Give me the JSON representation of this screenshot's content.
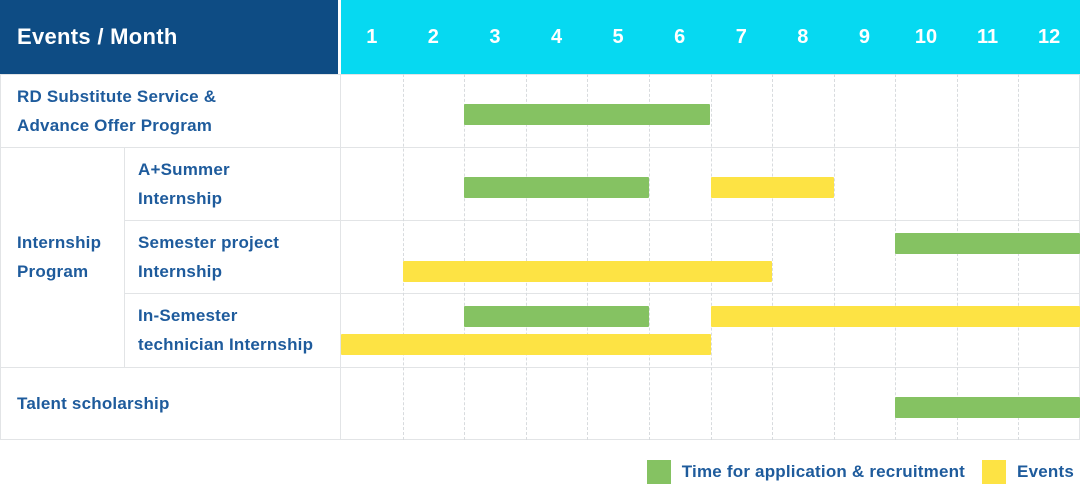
{
  "header": {
    "title": "Events / Month"
  },
  "months": [
    "1",
    "2",
    "3",
    "4",
    "5",
    "6",
    "7",
    "8",
    "9",
    "10",
    "11",
    "12"
  ],
  "colors": {
    "navy": "#0e4c84",
    "cyan": "#06d9f1",
    "application": "#85c262",
    "events": "#fde344",
    "label_blue": "#1e5b9c",
    "grid_line": "#e2e4e6",
    "grid_dash": "#d8dbde"
  },
  "group_label_lines": [
    "Internship",
    "Program"
  ],
  "rows": [
    {
      "name": "rd-substitute-service",
      "group": null,
      "label_lines": [
        "RD Substitute Service &",
        "Advance Offer Program"
      ],
      "lines": 1,
      "bars": [
        {
          "kind": "application",
          "from": 3,
          "to": 6,
          "line": 0
        }
      ]
    },
    {
      "name": "a-plus-summer-internship",
      "group": "Internship Program",
      "label_lines": [
        "A+Summer",
        "Internship"
      ],
      "lines": 1,
      "bars": [
        {
          "kind": "application",
          "from": 3,
          "to": 5,
          "line": 0
        },
        {
          "kind": "events",
          "from": 7,
          "to": 8,
          "line": 0
        }
      ]
    },
    {
      "name": "semester-project-internship",
      "group": "Internship Program",
      "label_lines": [
        "Semester project",
        "Internship"
      ],
      "lines": 2,
      "bars": [
        {
          "kind": "application",
          "from": 10,
          "to": 12,
          "line": 0
        },
        {
          "kind": "events",
          "from": 2,
          "to": 7,
          "line": 1
        }
      ]
    },
    {
      "name": "in-semester-technician-internship",
      "group": "Internship Program",
      "label_lines": [
        "In-Semester",
        "technician Internship"
      ],
      "lines": 2,
      "bars": [
        {
          "kind": "application",
          "from": 3,
          "to": 5,
          "line": 0
        },
        {
          "kind": "events",
          "from": 7,
          "to": 12,
          "line": 0
        },
        {
          "kind": "events",
          "from": 1,
          "to": 6,
          "line": 1
        }
      ]
    },
    {
      "name": "talent-scholarship",
      "group": null,
      "label_lines": [
        "Talent scholarship"
      ],
      "lines": 1,
      "bars": [
        {
          "kind": "application",
          "from": 10,
          "to": 12,
          "line": 0
        }
      ]
    }
  ],
  "legend": {
    "items": [
      {
        "name": "application",
        "label": "Time for application & recruitment",
        "color": "#85c262"
      },
      {
        "name": "events",
        "label": "Events",
        "color": "#fde344"
      }
    ]
  },
  "chart_data": {
    "type": "gantt",
    "title": "Events / Month",
    "x": {
      "label": "Month",
      "ticks": [
        1,
        2,
        3,
        4,
        5,
        6,
        7,
        8,
        9,
        10,
        11,
        12
      ],
      "range": [
        1,
        12
      ]
    },
    "legend": [
      "Time for application & recruitment",
      "Events"
    ],
    "legend_position": "bottom-right",
    "grid": true,
    "series": [
      {
        "name": "RD Substitute Service & Advance Offer Program",
        "group": null,
        "application_months": [
          [
            3,
            6
          ]
        ],
        "event_months": []
      },
      {
        "name": "A+Summer Internship",
        "group": "Internship Program",
        "application_months": [
          [
            3,
            5
          ]
        ],
        "event_months": [
          [
            7,
            8
          ]
        ]
      },
      {
        "name": "Semester project Internship",
        "group": "Internship Program",
        "application_months": [
          [
            10,
            12
          ]
        ],
        "event_months": [
          [
            2,
            7
          ]
        ]
      },
      {
        "name": "In-Semester technician Internship",
        "group": "Internship Program",
        "application_months": [
          [
            3,
            5
          ]
        ],
        "event_months": [
          [
            7,
            12
          ],
          [
            1,
            6
          ]
        ]
      },
      {
        "name": "Talent scholarship",
        "group": null,
        "application_months": [
          [
            10,
            12
          ]
        ],
        "event_months": []
      }
    ]
  }
}
